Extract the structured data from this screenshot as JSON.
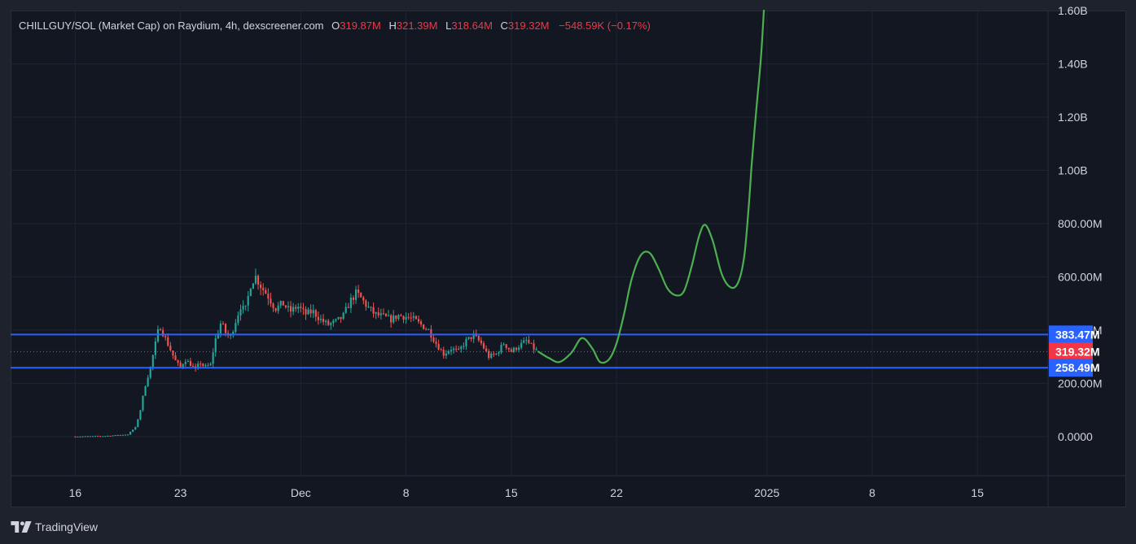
{
  "legend": {
    "symbol": "CHILLGUY/SOL (Market Cap) on Raydium, 4h, dexscreener.com",
    "o_label": "O",
    "o_value": "319.87M",
    "h_label": "H",
    "h_value": "321.39M",
    "l_label": "L",
    "l_value": "318.64M",
    "c_label": "C",
    "c_value": "319.32M",
    "change": "−548.59K (−0.17%)"
  },
  "branding": {
    "name": "TradingView"
  },
  "colors": {
    "background": "#131722",
    "up": "#26a69a",
    "down": "#ef5350",
    "projection": "#4caf50",
    "level_line": "#2962ff",
    "current_price": "#f23645"
  },
  "chart_data": {
    "type": "candlestick",
    "x_ticks": [
      {
        "label": "16",
        "day": 16
      },
      {
        "label": "23",
        "day": 23
      },
      {
        "label": "Dec",
        "day": 31
      },
      {
        "label": "8",
        "day": 38
      },
      {
        "label": "15",
        "day": 45
      },
      {
        "label": "22",
        "day": 52
      },
      {
        "label": "2025",
        "day": 62
      },
      {
        "label": "8",
        "day": 69
      },
      {
        "label": "15",
        "day": 76
      }
    ],
    "x_range_days": [
      11.7,
      80.7
    ],
    "y_ticks": [
      {
        "label": "0.0000",
        "value": 0
      },
      {
        "label": "200.00M",
        "value": 200
      },
      {
        "label": "400.00M",
        "value": 400
      },
      {
        "label": "600.00M",
        "value": 600
      },
      {
        "label": "800.00M",
        "value": 800
      },
      {
        "label": "1.00B",
        "value": 1000
      },
      {
        "label": "1.20B",
        "value": 1200
      },
      {
        "label": "1.40B",
        "value": 1400
      },
      {
        "label": "1.60B",
        "value": 1600
      }
    ],
    "y_unit": "M",
    "ylim": [
      -147,
      1597
    ],
    "price_levels": [
      {
        "label": "383.47M",
        "value": 383.47,
        "kind": "resistance"
      },
      {
        "label": "319.32M",
        "value": 319.32,
        "kind": "current"
      },
      {
        "label": "258.49M",
        "value": 258.49,
        "kind": "support"
      }
    ],
    "price_path": [
      [
        16.0,
        0
      ],
      [
        18.0,
        2
      ],
      [
        19.5,
        8
      ],
      [
        20.0,
        35
      ],
      [
        20.3,
        90
      ],
      [
        20.6,
        180
      ],
      [
        21.0,
        260
      ],
      [
        21.3,
        340
      ],
      [
        21.6,
        420
      ],
      [
        21.9,
        380
      ],
      [
        22.3,
        330
      ],
      [
        22.7,
        280
      ],
      [
        23.0,
        260
      ],
      [
        23.3,
        290
      ],
      [
        23.7,
        270
      ],
      [
        24.0,
        250
      ],
      [
        24.3,
        280
      ],
      [
        24.6,
        260
      ],
      [
        25.0,
        270
      ],
      [
        25.3,
        360
      ],
      [
        25.7,
        430
      ],
      [
        26.0,
        390
      ],
      [
        26.3,
        370
      ],
      [
        26.7,
        440
      ],
      [
        27.0,
        490
      ],
      [
        27.3,
        470
      ],
      [
        27.7,
        580
      ],
      [
        28.0,
        600
      ],
      [
        28.4,
        560
      ],
      [
        28.8,
        530
      ],
      [
        29.3,
        480
      ],
      [
        29.8,
        500
      ],
      [
        30.3,
        470
      ],
      [
        30.8,
        490
      ],
      [
        31.3,
        460
      ],
      [
        31.8,
        470
      ],
      [
        32.3,
        440
      ],
      [
        32.8,
        420
      ],
      [
        33.3,
        430
      ],
      [
        33.8,
        450
      ],
      [
        34.3,
        510
      ],
      [
        34.7,
        540
      ],
      [
        35.0,
        520
      ],
      [
        35.4,
        490
      ],
      [
        35.9,
        460
      ],
      [
        36.5,
        450
      ],
      [
        37.0,
        440
      ],
      [
        37.5,
        455
      ],
      [
        38.0,
        450
      ],
      [
        38.5,
        440
      ],
      [
        39.0,
        420
      ],
      [
        39.5,
        400
      ],
      [
        40.0,
        350
      ],
      [
        40.5,
        310
      ],
      [
        41.0,
        330
      ],
      [
        41.5,
        320
      ],
      [
        42.0,
        360
      ],
      [
        42.5,
        380
      ],
      [
        43.0,
        350
      ],
      [
        43.5,
        300
      ],
      [
        44.0,
        310
      ],
      [
        44.5,
        350
      ],
      [
        45.0,
        320
      ],
      [
        45.5,
        340
      ],
      [
        46.0,
        360
      ],
      [
        46.5,
        330
      ],
      [
        46.8,
        319
      ]
    ],
    "projection_path": [
      [
        46.8,
        319
      ],
      [
        47.5,
        295
      ],
      [
        48.2,
        280
      ],
      [
        49.0,
        315
      ],
      [
        49.7,
        370
      ],
      [
        50.4,
        330
      ],
      [
        50.9,
        280
      ],
      [
        51.5,
        290
      ],
      [
        52.0,
        350
      ],
      [
        52.5,
        460
      ],
      [
        53.0,
        590
      ],
      [
        53.6,
        680
      ],
      [
        54.2,
        690
      ],
      [
        54.8,
        630
      ],
      [
        55.4,
        555
      ],
      [
        56.0,
        530
      ],
      [
        56.5,
        548
      ],
      [
        57.0,
        640
      ],
      [
        57.5,
        755
      ],
      [
        57.9,
        795
      ],
      [
        58.4,
        735
      ],
      [
        59.0,
        610
      ],
      [
        59.6,
        560
      ],
      [
        60.1,
        580
      ],
      [
        60.5,
        680
      ],
      [
        60.8,
        870
      ],
      [
        61.0,
        1030
      ],
      [
        61.3,
        1230
      ],
      [
        61.6,
        1420
      ],
      [
        61.8,
        1600
      ]
    ]
  }
}
